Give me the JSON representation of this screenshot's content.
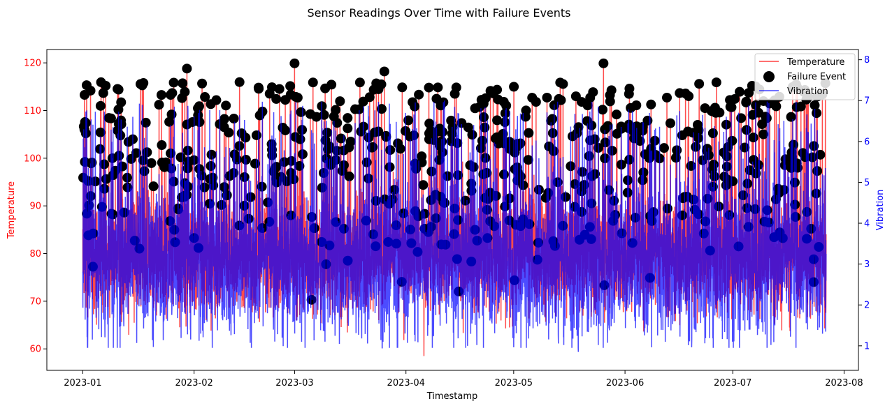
{
  "chart_data": {
    "type": "line",
    "title": "Sensor Readings Over Time with Failure Events",
    "xlabel": "Timestamp",
    "ylabel_left": "Temperature",
    "ylabel_right": "Vibration",
    "x_range": [
      "2023-01-01",
      "2023-07-27"
    ],
    "xlim": [
      "2022-12-22",
      "2023-08-05"
    ],
    "x_ticks": [
      "2023-01",
      "2023-02",
      "2023-03",
      "2023-04",
      "2023-05",
      "2023-06",
      "2023-07",
      "2023-08"
    ],
    "ylim_left": [
      55.5,
      122.8
    ],
    "y_ticks_left": [
      60,
      70,
      80,
      90,
      100,
      110,
      120
    ],
    "ylim_right": [
      0.4,
      8.25
    ],
    "y_ticks_right": [
      1,
      2,
      3,
      4,
      5,
      6,
      7,
      8
    ],
    "legend_position": "top-right",
    "grid": false,
    "series": [
      {
        "name": "Temperature",
        "axis": "left",
        "kind": "line",
        "color": "#ff0000",
        "approx_mean": 80,
        "approx_min": 58.5,
        "approx_max": 120
      },
      {
        "name": "Failure Event",
        "axis": "left",
        "kind": "scatter",
        "color": "#000000",
        "approx_range": [
          68,
          120
        ]
      },
      {
        "name": "Vibration",
        "axis": "right",
        "kind": "line",
        "color": "#0000ff",
        "approx_mean": 3.0,
        "approx_min": 0.85,
        "approx_max": 7.8
      }
    ],
    "notable_points": {
      "failure_peaks": [
        {
          "x": "2023-03-01",
          "y": 119.9
        },
        {
          "x": "2023-05-26",
          "y": 119.9
        },
        {
          "x": "2023-01-30",
          "y": 118.8
        },
        {
          "x": "2023-03-26",
          "y": 118.2
        }
      ],
      "temperature_min": {
        "x": "2023-04-06",
        "y": 58.5
      },
      "vibration_min": {
        "x": "2023-05-19",
        "y": 0.85
      }
    }
  },
  "colors": {
    "temperature": "#ff0000",
    "vibration": "#0000ff",
    "failure": "#000000",
    "left_axis_labels": "#ff0000",
    "right_axis_labels": "#0000ff"
  }
}
